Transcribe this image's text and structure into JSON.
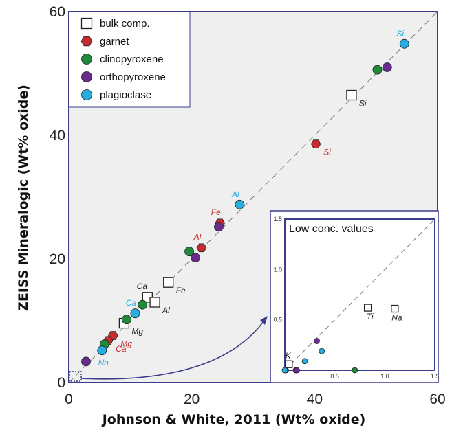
{
  "colors": {
    "garnet": "#c62b2d",
    "clinopyroxene": "#1f8a3c",
    "orthopyroxene": "#6a2b8f",
    "plagioclase": "#27aee0",
    "bulk": "#ffffff",
    "frame": "#3b3d8a",
    "panel": "#efefef",
    "label_bulk": "#222222"
  },
  "chart_data": [
    {
      "type": "scatter",
      "xlabel": "Johnson & White, 2011 (Wt% oxide)",
      "ylabel": "ZEISS Mineralogic (Wt% oxide)",
      "xlim": [
        0,
        60
      ],
      "ylim": [
        0,
        60
      ],
      "xticks": [
        "0",
        "20",
        "40",
        "60"
      ],
      "yticks": [
        "0",
        "20",
        "40",
        "60"
      ],
      "reference_line": "1:1 dashed",
      "legend": {
        "placement": "top-left",
        "entries": [
          "bulk comp.",
          "garnet",
          "clinopyroxene",
          "orthopyroxene",
          "plagioclase"
        ]
      },
      "series": [
        {
          "name": "bulk comp.",
          "marker": "open-square",
          "points": [
            {
              "x": 46.0,
              "y": 46.5,
              "label": "Si"
            },
            {
              "x": 16.2,
              "y": 16.2,
              "label": "Fe"
            },
            {
              "x": 12.8,
              "y": 13.8,
              "label": "Ca"
            },
            {
              "x": 14.0,
              "y": 13.0,
              "label": "Al"
            },
            {
              "x": 9.0,
              "y": 9.6,
              "label": "Mg"
            }
          ]
        },
        {
          "name": "garnet",
          "marker": "hexagon",
          "points": [
            {
              "x": 40.2,
              "y": 38.6,
              "label": "Si"
            },
            {
              "x": 24.6,
              "y": 25.8,
              "label": "Fe"
            },
            {
              "x": 21.6,
              "y": 21.8,
              "label": "Al"
            },
            {
              "x": 7.2,
              "y": 7.6,
              "label": "Mg"
            },
            {
              "x": 6.4,
              "y": 6.8,
              "label": "Ca"
            }
          ]
        },
        {
          "name": "clinopyroxene",
          "marker": "circle",
          "points": [
            {
              "x": 50.2,
              "y": 50.6
            },
            {
              "x": 19.6,
              "y": 21.2
            },
            {
              "x": 12.0,
              "y": 12.6
            },
            {
              "x": 9.4,
              "y": 10.2
            },
            {
              "x": 5.8,
              "y": 6.2
            }
          ]
        },
        {
          "name": "orthopyroxene",
          "marker": "circle",
          "points": [
            {
              "x": 51.8,
              "y": 51.0
            },
            {
              "x": 24.4,
              "y": 25.2
            },
            {
              "x": 20.6,
              "y": 20.2
            },
            {
              "x": 2.8,
              "y": 3.4
            }
          ]
        },
        {
          "name": "plagioclase",
          "marker": "circle",
          "points": [
            {
              "x": 54.6,
              "y": 54.8,
              "label": "Si"
            },
            {
              "x": 27.8,
              "y": 28.8,
              "label": "Al"
            },
            {
              "x": 10.8,
              "y": 11.2,
              "label": "Ca"
            },
            {
              "x": 5.4,
              "y": 5.2,
              "label": "Na"
            }
          ]
        }
      ]
    },
    {
      "type": "scatter",
      "title": "Low conc. values",
      "xlim": [
        0,
        1.5
      ],
      "ylim": [
        0,
        1.5
      ],
      "xticks": [
        "0.5",
        "1.0",
        "1.5"
      ],
      "yticks": [
        "0.5",
        "1.0",
        "1.5"
      ],
      "reference_line": "1:1 dashed",
      "series": [
        {
          "name": "bulk comp.",
          "marker": "open-square",
          "points": [
            {
              "x": 0.04,
              "y": 0.06,
              "label": "K"
            },
            {
              "x": 0.83,
              "y": 0.62,
              "label": "Ti"
            },
            {
              "x": 1.1,
              "y": 0.61,
              "label": "Na"
            }
          ]
        },
        {
          "name": "garnet",
          "marker": "circle",
          "points": [
            {
              "x": 0.01,
              "y": 0.0
            },
            {
              "x": 0.11,
              "y": 0.0
            }
          ]
        },
        {
          "name": "clinopyroxene",
          "marker": "circle",
          "points": [
            {
              "x": 0.7,
              "y": 0.0
            }
          ]
        },
        {
          "name": "orthopyroxene",
          "marker": "circle",
          "points": [
            {
              "x": 0.12,
              "y": 0.0
            },
            {
              "x": 0.32,
              "y": 0.29
            }
          ]
        },
        {
          "name": "plagioclase",
          "marker": "circle",
          "points": [
            {
              "x": 0.0,
              "y": 0.0
            },
            {
              "x": 0.2,
              "y": 0.09
            },
            {
              "x": 0.37,
              "y": 0.19
            }
          ]
        }
      ]
    }
  ]
}
